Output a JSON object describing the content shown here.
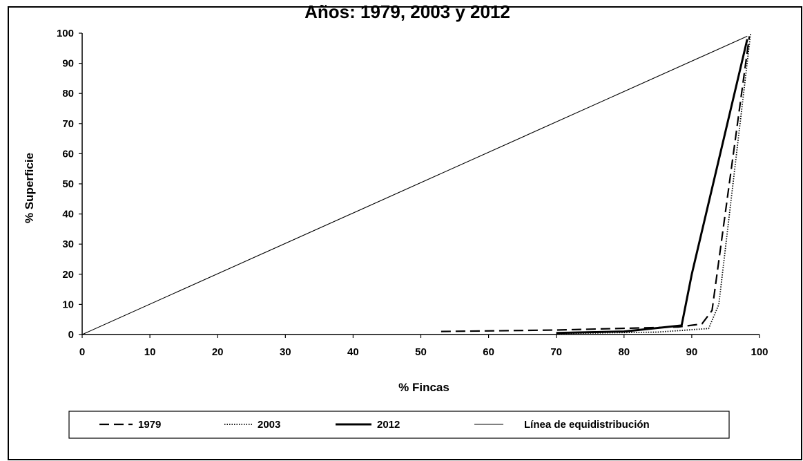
{
  "chart_data": {
    "type": "line",
    "title": "Años: 1979, 2003 y 2012",
    "xlabel": "% Fincas",
    "ylabel": "% Superficie",
    "xlim": [
      0,
      100
    ],
    "ylim": [
      0,
      100
    ],
    "x_ticks": [
      "0",
      "10",
      "20",
      "30",
      "40",
      "50",
      "60",
      "70",
      "80",
      "90",
      "100"
    ],
    "y_ticks": [
      "0",
      "10",
      "20",
      "30",
      "40",
      "50",
      "60",
      "70",
      "80",
      "90",
      "100"
    ],
    "grid": false,
    "legend_position": "bottom",
    "series": [
      {
        "name": "1979",
        "style": "dashed",
        "color": "#000000",
        "points": [
          [
            53,
            1
          ],
          [
            70,
            1.5
          ],
          [
            88,
            2.5
          ],
          [
            91.5,
            3.5
          ],
          [
            93,
            8
          ],
          [
            98.5,
            99
          ]
        ]
      },
      {
        "name": "2003",
        "style": "dotted",
        "color": "#000000",
        "points": [
          [
            70,
            0.3
          ],
          [
            85,
            0.8
          ],
          [
            92.5,
            2
          ],
          [
            94,
            10
          ],
          [
            98.7,
            100
          ]
        ]
      },
      {
        "name": "2012",
        "style": "solid-thick",
        "color": "#000000",
        "points": [
          [
            70,
            0.5
          ],
          [
            80,
            1
          ],
          [
            88.5,
            3
          ],
          [
            90,
            20
          ],
          [
            98.2,
            98
          ]
        ]
      },
      {
        "name": "Línea de equidistribución",
        "style": "solid-thin",
        "color": "#000000",
        "points": [
          [
            0,
            0
          ],
          [
            98.2,
            99
          ]
        ]
      }
    ]
  }
}
